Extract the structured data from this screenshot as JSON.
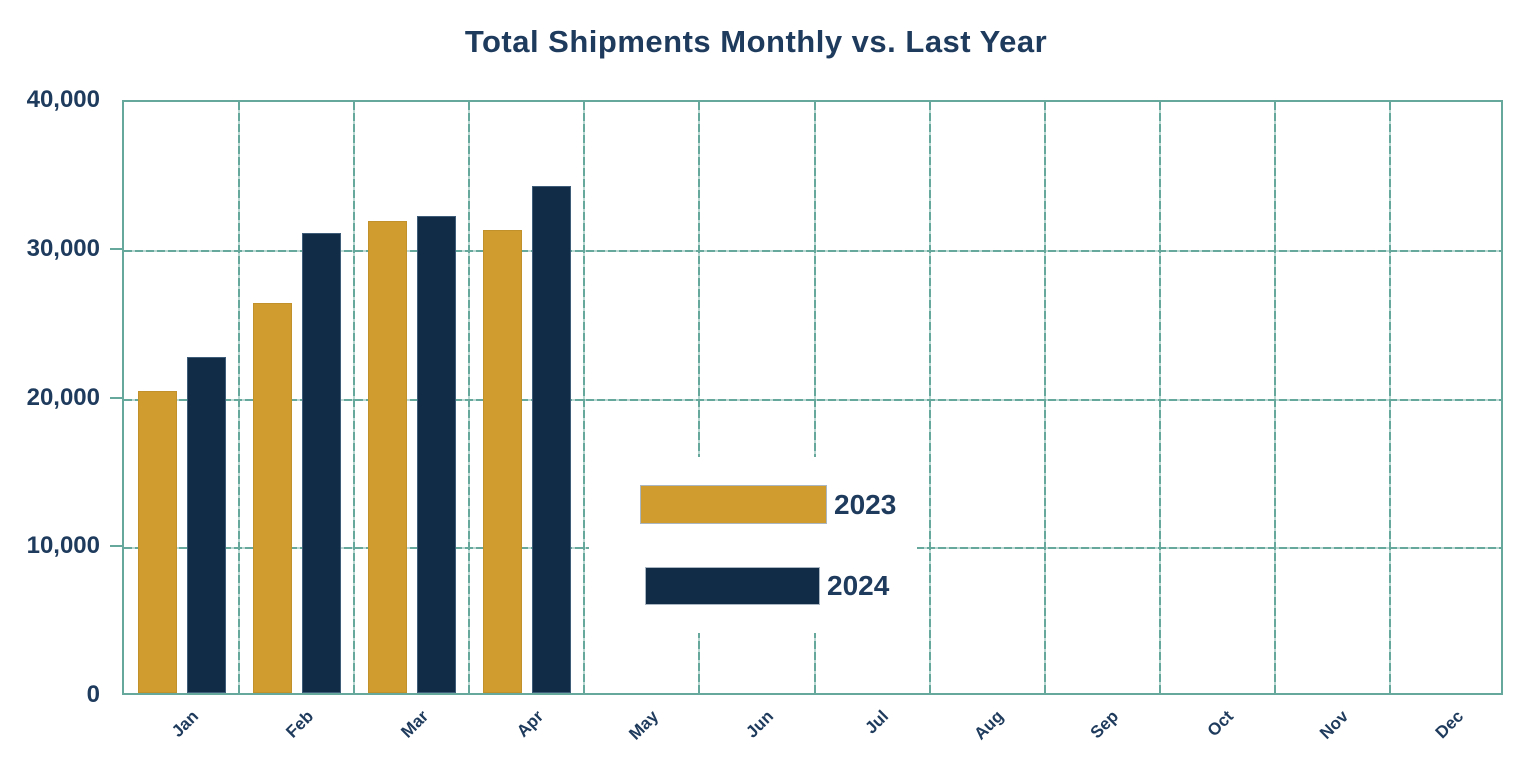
{
  "chart_data": {
    "type": "bar",
    "title": "Total Shipments Monthly vs. Last Year",
    "categories": [
      "Jan",
      "Feb",
      "Mar",
      "Apr",
      "May",
      "Jun",
      "Jul",
      "Aug",
      "Sep",
      "Oct",
      "Nov",
      "Dec"
    ],
    "series": [
      {
        "name": "2023",
        "color_key": "gold",
        "values": [
          20300,
          26200,
          31700,
          31100,
          null,
          null,
          null,
          null,
          null,
          null,
          null,
          null
        ]
      },
      {
        "name": "2024",
        "color_key": "navy",
        "values": [
          22600,
          30900,
          32100,
          34100,
          null,
          null,
          null,
          null,
          null,
          null,
          null,
          null
        ]
      }
    ],
    "xlabel": "",
    "ylabel": "",
    "ylim": [
      0,
      40000
    ],
    "ytick_interval": 10000,
    "ytick_labels": [
      "0",
      "10,000",
      "20,000",
      "30,000",
      "40,000"
    ],
    "grid": true,
    "legend_position": "center-inside-plot"
  },
  "colors": {
    "gold": "#D09C2F",
    "navy": "#102C46",
    "grid": "#66A89B",
    "text": "#1E3A5C",
    "background": "#FFFFFF"
  }
}
